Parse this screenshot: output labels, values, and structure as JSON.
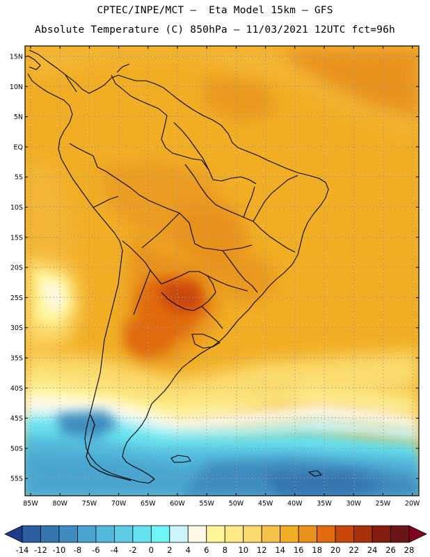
{
  "title": {
    "line1": "CPTEC/INPE/MCT –  Eta Model 15km – GFS",
    "line2": "Absolute Temperature (C) 850hPa – 11/03/2021 12UTC fct=96h"
  },
  "map": {
    "lon_range": [
      -86,
      -19
    ],
    "lat_range": [
      -58,
      17
    ],
    "lat_ticks": [
      "15N",
      "10N",
      "5N",
      "EQ",
      "5S",
      "10S",
      "15S",
      "20S",
      "25S",
      "30S",
      "35S",
      "40S",
      "45S",
      "50S",
      "55S"
    ],
    "lon_ticks": [
      "85W",
      "80W",
      "75W",
      "70W",
      "65W",
      "60W",
      "55W",
      "50W",
      "45W",
      "40W",
      "35W",
      "30W",
      "25W",
      "20W"
    ],
    "coastline": "continental outline"
  },
  "colorbar": {
    "labels": [
      "-14",
      "-12",
      "-10",
      "-8",
      "-6",
      "-4",
      "-2",
      "0",
      "2",
      "4",
      "6",
      "8",
      "10",
      "12",
      "14",
      "16",
      "18",
      "20",
      "22",
      "24",
      "26",
      "28"
    ],
    "colors": [
      "#1e3c8c",
      "#2b5ea0",
      "#3575b0",
      "#3f8cc0",
      "#49a5cf",
      "#53b9dc",
      "#5ccde5",
      "#66e1ee",
      "#70f5f6",
      "#ccf6fb",
      "#fef8e6",
      "#fef59a",
      "#fde985",
      "#fbdb70",
      "#f6c24a",
      "#f1ae25",
      "#e8921b",
      "#e06a0d",
      "#c9470a",
      "#a8300a",
      "#841c10",
      "#6b1616",
      "#800020"
    ]
  }
}
